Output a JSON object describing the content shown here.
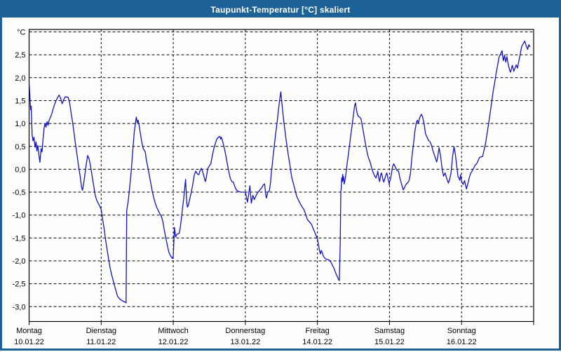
{
  "window": {
    "title": "Taupunkt-Temperatur [°C] skaliert",
    "title_bar_color": "#1d6296",
    "border_color": "#1d6296",
    "background_color": "#fdfefc"
  },
  "chart_data": {
    "type": "line",
    "title": "Taupunkt-Temperatur [°C] skaliert",
    "series_name": "Taupunkt",
    "line_color": "#1212c8",
    "axis_color": "#000000",
    "grid": "dashed",
    "legend_position": "none",
    "y_axis": {
      "unit_label": "°C",
      "min": -3.0,
      "max": 3.0,
      "step": 0.5,
      "tick_labels": [
        "°C",
        "2,5",
        "2,0",
        "1,5",
        "1,0",
        "0,5",
        "0,0",
        "-0,5",
        "-1,0",
        "-1,5",
        "-2,0",
        "-2,5",
        "-3,0"
      ]
    },
    "x_axis": {
      "hours_total": 168,
      "days": [
        {
          "label": "Montag",
          "date": "10.01.22"
        },
        {
          "label": "Dienstag",
          "date": "11.01.22"
        },
        {
          "label": "Mittwoch",
          "date": "12.01.22"
        },
        {
          "label": "Donnerstag",
          "date": "13.01.22"
        },
        {
          "label": "Freitag",
          "date": "14.01.22"
        },
        {
          "label": "Samstag",
          "date": "15.01.22"
        },
        {
          "label": "Sonntag",
          "date": "16.01.22"
        }
      ]
    },
    "points": [
      [
        0,
        1.9
      ],
      [
        0.3,
        1.55
      ],
      [
        0.5,
        1.3
      ],
      [
        0.7,
        1.38
      ],
      [
        1,
        0.75
      ],
      [
        1.3,
        0.62
      ],
      [
        1.6,
        0.7
      ],
      [
        2,
        0.48
      ],
      [
        2.3,
        0.6
      ],
      [
        2.6,
        0.4
      ],
      [
        2.9,
        0.52
      ],
      [
        3.3,
        0.3
      ],
      [
        3.6,
        0.15
      ],
      [
        4,
        0.45
      ],
      [
        4.3,
        0.38
      ],
      [
        4.6,
        0.62
      ],
      [
        5,
        0.9
      ],
      [
        5.3,
        1.0
      ],
      [
        5.6,
        0.92
      ],
      [
        6,
        1.04
      ],
      [
        6.3,
        0.96
      ],
      [
        6.6,
        1.06
      ],
      [
        7,
        1.12
      ],
      [
        7.5,
        1.2
      ],
      [
        8,
        1.32
      ],
      [
        8.5,
        1.42
      ],
      [
        9,
        1.5
      ],
      [
        9.5,
        1.57
      ],
      [
        10,
        1.62
      ],
      [
        10.5,
        1.55
      ],
      [
        11,
        1.43
      ],
      [
        11.5,
        1.52
      ],
      [
        12,
        1.58
      ],
      [
        12.5,
        1.58
      ],
      [
        13,
        1.57
      ],
      [
        13.5,
        1.45
      ],
      [
        14,
        1.22
      ],
      [
        14.5,
        1.02
      ],
      [
        15,
        0.78
      ],
      [
        15.5,
        0.52
      ],
      [
        16,
        0.3
      ],
      [
        16.5,
        0.05
      ],
      [
        17,
        -0.15
      ],
      [
        17.5,
        -0.4
      ],
      [
        17.8,
        -0.46
      ],
      [
        18.2,
        -0.3
      ],
      [
        18.6,
        -0.1
      ],
      [
        19,
        0.1
      ],
      [
        19.5,
        0.3
      ],
      [
        20,
        0.22
      ],
      [
        20.5,
        0.05
      ],
      [
        21,
        -0.15
      ],
      [
        21.5,
        -0.36
      ],
      [
        22,
        -0.56
      ],
      [
        22.5,
        -0.68
      ],
      [
        23,
        -0.74
      ],
      [
        23.5,
        -0.8
      ],
      [
        24,
        -0.88
      ],
      [
        24.5,
        -1.1
      ],
      [
        25,
        -1.31
      ],
      [
        25.5,
        -1.55
      ],
      [
        26,
        -1.77
      ],
      [
        26.5,
        -1.98
      ],
      [
        27,
        -2.16
      ],
      [
        27.5,
        -2.31
      ],
      [
        28,
        -2.43
      ],
      [
        28.5,
        -2.56
      ],
      [
        29,
        -2.67
      ],
      [
        29.5,
        -2.78
      ],
      [
        30,
        -2.82
      ],
      [
        30.5,
        -2.85
      ],
      [
        31,
        -2.87
      ],
      [
        31.5,
        -2.89
      ],
      [
        32,
        -2.9
      ],
      [
        32.3,
        -2.92
      ],
      [
        32.5,
        -0.9
      ],
      [
        33,
        -0.7
      ],
      [
        33.5,
        -0.38
      ],
      [
        34,
        -0.05
      ],
      [
        34.5,
        0.4
      ],
      [
        35,
        0.8
      ],
      [
        35.5,
        1.05
      ],
      [
        35.7,
        1.14
      ],
      [
        36,
        1.02
      ],
      [
        36.3,
        1.07
      ],
      [
        36.7,
        0.93
      ],
      [
        37,
        0.8
      ],
      [
        37.5,
        0.6
      ],
      [
        38,
        0.45
      ],
      [
        38.3,
        0.42
      ],
      [
        38.7,
        0.38
      ],
      [
        39,
        0.22
      ],
      [
        39.5,
        0.05
      ],
      [
        40,
        -0.12
      ],
      [
        40.5,
        -0.3
      ],
      [
        41,
        -0.48
      ],
      [
        41.5,
        -0.62
      ],
      [
        42,
        -0.74
      ],
      [
        42.5,
        -0.83
      ],
      [
        43,
        -0.9
      ],
      [
        43.5,
        -0.97
      ],
      [
        44,
        -1.02
      ],
      [
        44.5,
        -1.13
      ],
      [
        45,
        -1.32
      ],
      [
        45.5,
        -1.5
      ],
      [
        46,
        -1.65
      ],
      [
        46.5,
        -1.8
      ],
      [
        47,
        -1.88
      ],
      [
        47.5,
        -1.93
      ],
      [
        47.8,
        -1.95
      ],
      [
        48,
        -1.88
      ],
      [
        48.4,
        -1.27
      ],
      [
        48.8,
        -1.48
      ],
      [
        49,
        -1.44
      ],
      [
        49.5,
        -1.41
      ],
      [
        50,
        -1.4
      ],
      [
        50.4,
        -1.25
      ],
      [
        50.8,
        -1.02
      ],
      [
        51,
        -0.9
      ],
      [
        51.5,
        -0.62
      ],
      [
        52,
        -0.28
      ],
      [
        52.1,
        -0.22
      ],
      [
        52.5,
        -0.72
      ],
      [
        52.7,
        -0.83
      ],
      [
        53,
        -0.79
      ],
      [
        53.5,
        -0.65
      ],
      [
        54,
        -0.5
      ],
      [
        54.5,
        -0.33
      ],
      [
        55,
        -0.12
      ],
      [
        55.5,
        -0.04
      ],
      [
        56,
        -0.1
      ],
      [
        56.5,
        -0.12
      ],
      [
        57,
        -0.02
      ],
      [
        57.4,
        0.02
      ],
      [
        58,
        -0.1
      ],
      [
        58.5,
        -0.23
      ],
      [
        58.7,
        -0.27
      ],
      [
        59,
        -0.18
      ],
      [
        59.5,
        0.02
      ],
      [
        60,
        0.07
      ],
      [
        60.5,
        0.12
      ],
      [
        61,
        0.29
      ],
      [
        61.5,
        0.45
      ],
      [
        62,
        0.56
      ],
      [
        62.5,
        0.66
      ],
      [
        63,
        0.7
      ],
      [
        63.5,
        0.72
      ],
      [
        63.8,
        0.66
      ],
      [
        64,
        0.7
      ],
      [
        64.5,
        0.6
      ],
      [
        65,
        0.46
      ],
      [
        65.5,
        0.3
      ],
      [
        66,
        0.12
      ],
      [
        66.5,
        -0.05
      ],
      [
        67,
        -0.2
      ],
      [
        67.5,
        -0.27
      ],
      [
        68,
        -0.28
      ],
      [
        68.5,
        -0.38
      ],
      [
        69,
        -0.45
      ],
      [
        69.5,
        -0.48
      ],
      [
        70,
        -0.49
      ],
      [
        70.5,
        -0.5
      ],
      [
        71,
        -0.5
      ],
      [
        71.5,
        -0.5
      ],
      [
        72,
        -0.5
      ],
      [
        72.7,
        -0.72
      ],
      [
        73,
        -0.6
      ],
      [
        73.5,
        -0.36
      ],
      [
        74,
        -0.74
      ],
      [
        74.5,
        -0.57
      ],
      [
        75,
        -0.66
      ],
      [
        75.4,
        -0.6
      ],
      [
        76,
        -0.52
      ],
      [
        76.5,
        -0.48
      ],
      [
        77,
        -0.44
      ],
      [
        77.5,
        -0.4
      ],
      [
        78,
        -0.34
      ],
      [
        78.4,
        -0.32
      ],
      [
        78.8,
        -0.55
      ],
      [
        79,
        -0.63
      ],
      [
        79.5,
        -0.5
      ],
      [
        80,
        -0.47
      ],
      [
        80.4,
        -0.29
      ],
      [
        80.7,
        -0.04
      ],
      [
        81,
        0.12
      ],
      [
        81.3,
        0.32
      ],
      [
        81.8,
        0.6
      ],
      [
        82.1,
        0.78
      ],
      [
        82.6,
        1.04
      ],
      [
        83,
        1.29
      ],
      [
        83.5,
        1.55
      ],
      [
        83.8,
        1.69
      ],
      [
        84,
        1.55
      ],
      [
        84.4,
        1.29
      ],
      [
        84.8,
        1.04
      ],
      [
        85.2,
        0.84
      ],
      [
        85.6,
        0.63
      ],
      [
        86,
        0.45
      ],
      [
        86.4,
        0.27
      ],
      [
        86.8,
        0.12
      ],
      [
        87.1,
        -0.03
      ],
      [
        87.5,
        -0.19
      ],
      [
        87.9,
        -0.29
      ],
      [
        88.3,
        -0.39
      ],
      [
        88.7,
        -0.49
      ],
      [
        89.1,
        -0.59
      ],
      [
        89.5,
        -0.65
      ],
      [
        89.9,
        -0.7
      ],
      [
        90.3,
        -0.75
      ],
      [
        90.7,
        -0.8
      ],
      [
        91.1,
        -0.84
      ],
      [
        91.5,
        -0.88
      ],
      [
        91.9,
        -0.95
      ],
      [
        92.3,
        -1.03
      ],
      [
        92.7,
        -1.1
      ],
      [
        93.1,
        -1.13
      ],
      [
        93.5,
        -1.16
      ],
      [
        94,
        -1.2
      ],
      [
        94.5,
        -1.28
      ],
      [
        95,
        -1.36
      ],
      [
        95.5,
        -1.44
      ],
      [
        96,
        -1.52
      ],
      [
        96.3,
        -1.62
      ],
      [
        96.7,
        -1.78
      ],
      [
        97,
        -1.85
      ],
      [
        97.3,
        -1.77
      ],
      [
        97.6,
        -1.82
      ],
      [
        98,
        -1.9
      ],
      [
        98.5,
        -1.94
      ],
      [
        99,
        -1.97
      ],
      [
        99.5,
        -1.97
      ],
      [
        100,
        -1.99
      ],
      [
        100.5,
        -2.03
      ],
      [
        101,
        -2.1
      ],
      [
        101.5,
        -2.16
      ],
      [
        102,
        -2.25
      ],
      [
        102.5,
        -2.33
      ],
      [
        103,
        -2.4
      ],
      [
        103.3,
        -2.43
      ],
      [
        103.6,
        -1.6
      ],
      [
        103.8,
        -0.49
      ],
      [
        103.9,
        -0.44
      ],
      [
        104.1,
        -0.19
      ],
      [
        104.3,
        -0.27
      ],
      [
        104.4,
        -0.11
      ],
      [
        104.5,
        -0.24
      ],
      [
        104.7,
        -0.16
      ],
      [
        104.9,
        -0.32
      ],
      [
        105.1,
        -0.27
      ],
      [
        105.3,
        -0.19
      ],
      [
        105.7,
        0.01
      ],
      [
        105.9,
        0.12
      ],
      [
        106.1,
        0.22
      ],
      [
        106.5,
        0.42
      ],
      [
        106.9,
        0.63
      ],
      [
        107.3,
        0.83
      ],
      [
        107.7,
        1.04
      ],
      [
        108.1,
        1.24
      ],
      [
        108.4,
        1.39
      ],
      [
        108.7,
        1.45
      ],
      [
        108.9,
        1.34
      ],
      [
        109.1,
        1.27
      ],
      [
        109.4,
        1.19
      ],
      [
        109.6,
        1.16
      ],
      [
        110,
        1.14
      ],
      [
        110.2,
        1.13
      ],
      [
        110.5,
        1.1
      ],
      [
        110.8,
        1.01
      ],
      [
        111.2,
        0.86
      ],
      [
        111.6,
        0.7
      ],
      [
        112,
        0.55
      ],
      [
        112.4,
        0.42
      ],
      [
        112.7,
        0.32
      ],
      [
        113.1,
        0.23
      ],
      [
        113.5,
        0.17
      ],
      [
        113.9,
        0.07
      ],
      [
        114.3,
        -0.03
      ],
      [
        114.7,
        -0.09
      ],
      [
        115.1,
        -0.15
      ],
      [
        115.5,
        -0.19
      ],
      [
        115.7,
        -0.14
      ],
      [
        115.9,
        -0.11
      ],
      [
        116.1,
        -0.04
      ],
      [
        116.3,
        -0.14
      ],
      [
        116.5,
        -0.21
      ],
      [
        116.7,
        -0.27
      ],
      [
        116.9,
        -0.19
      ],
      [
        117.1,
        -0.11
      ],
      [
        117.3,
        -0.08
      ],
      [
        117.5,
        -0.13
      ],
      [
        117.7,
        -0.19
      ],
      [
        117.9,
        -0.24
      ],
      [
        118.1,
        -0.28
      ],
      [
        118.3,
        -0.24
      ],
      [
        118.5,
        -0.19
      ],
      [
        118.7,
        -0.15
      ],
      [
        118.9,
        -0.11
      ],
      [
        119.1,
        -0.08
      ],
      [
        119.3,
        -0.13
      ],
      [
        119.5,
        -0.21
      ],
      [
        119.8,
        -0.29
      ],
      [
        119.9,
        -0.34
      ],
      [
        120,
        -0.28
      ],
      [
        120.4,
        -0.2
      ],
      [
        121,
        0.05
      ],
      [
        121.4,
        0.12
      ],
      [
        122,
        0.04
      ],
      [
        122.5,
        -0.03
      ],
      [
        123,
        -0.04
      ],
      [
        123.5,
        -0.2
      ],
      [
        124,
        -0.32
      ],
      [
        124.6,
        -0.45
      ],
      [
        125,
        -0.4
      ],
      [
        125.5,
        -0.33
      ],
      [
        126,
        -0.3
      ],
      [
        126.5,
        -0.25
      ],
      [
        127,
        -0.08
      ],
      [
        127.5,
        0.28
      ],
      [
        128,
        0.56
      ],
      [
        128.5,
        0.85
      ],
      [
        129,
        1.04
      ],
      [
        129.3,
        1.07
      ],
      [
        129.6,
        1.0
      ],
      [
        130,
        1.12
      ],
      [
        130.6,
        1.2
      ],
      [
        131,
        1.15
      ],
      [
        131.5,
        1.0
      ],
      [
        132,
        0.78
      ],
      [
        132.5,
        0.7
      ],
      [
        133,
        0.63
      ],
      [
        133.5,
        0.6
      ],
      [
        134,
        0.52
      ],
      [
        134.5,
        0.4
      ],
      [
        135,
        0.3
      ],
      [
        135.7,
        0.16
      ],
      [
        136,
        0.25
      ],
      [
        136.5,
        0.47
      ],
      [
        137,
        0.3
      ],
      [
        137.5,
        0.02
      ],
      [
        138,
        -0.15
      ],
      [
        138.5,
        -0.08
      ],
      [
        139,
        -0.19
      ],
      [
        139.6,
        -0.3
      ],
      [
        140,
        -0.23
      ],
      [
        140.5,
        -0.08
      ],
      [
        141,
        0.28
      ],
      [
        141.5,
        0.49
      ],
      [
        142,
        0.3
      ],
      [
        142.4,
        0.06
      ],
      [
        142.8,
        -0.16
      ],
      [
        143.1,
        -0.19
      ],
      [
        143.4,
        -0.24
      ],
      [
        143.7,
        -0.12
      ],
      [
        144,
        -0.27
      ],
      [
        144.5,
        -0.33
      ],
      [
        145,
        -0.25
      ],
      [
        145.6,
        -0.43
      ],
      [
        146,
        -0.34
      ],
      [
        146.5,
        -0.2
      ],
      [
        147,
        -0.09
      ],
      [
        147.5,
        -0.04
      ],
      [
        148,
        0.02
      ],
      [
        148.5,
        0.09
      ],
      [
        149,
        0.12
      ],
      [
        149.5,
        0.19
      ],
      [
        150,
        0.26
      ],
      [
        150.5,
        0.27
      ],
      [
        151,
        0.28
      ],
      [
        151.5,
        0.42
      ],
      [
        152,
        0.57
      ],
      [
        152.5,
        0.78
      ],
      [
        153,
        1.0
      ],
      [
        153.5,
        1.22
      ],
      [
        154,
        1.45
      ],
      [
        154.5,
        1.7
      ],
      [
        155,
        1.88
      ],
      [
        155.5,
        2.1
      ],
      [
        156,
        2.27
      ],
      [
        156.5,
        2.45
      ],
      [
        157,
        2.52
      ],
      [
        157.5,
        2.59
      ],
      [
        157.9,
        2.37
      ],
      [
        158.3,
        2.49
      ],
      [
        158.7,
        2.34
      ],
      [
        159.1,
        2.46
      ],
      [
        159.5,
        2.3
      ],
      [
        160,
        2.17
      ],
      [
        160.3,
        2.12
      ],
      [
        160.9,
        2.27
      ],
      [
        161.4,
        2.14
      ],
      [
        162.2,
        2.28
      ],
      [
        162.6,
        2.21
      ],
      [
        163,
        2.34
      ],
      [
        163.4,
        2.47
      ],
      [
        164,
        2.68
      ],
      [
        164.5,
        2.74
      ],
      [
        165,
        2.8
      ],
      [
        165.5,
        2.7
      ],
      [
        166,
        2.62
      ],
      [
        166.4,
        2.72
      ],
      [
        166.8,
        2.67
      ]
    ]
  }
}
